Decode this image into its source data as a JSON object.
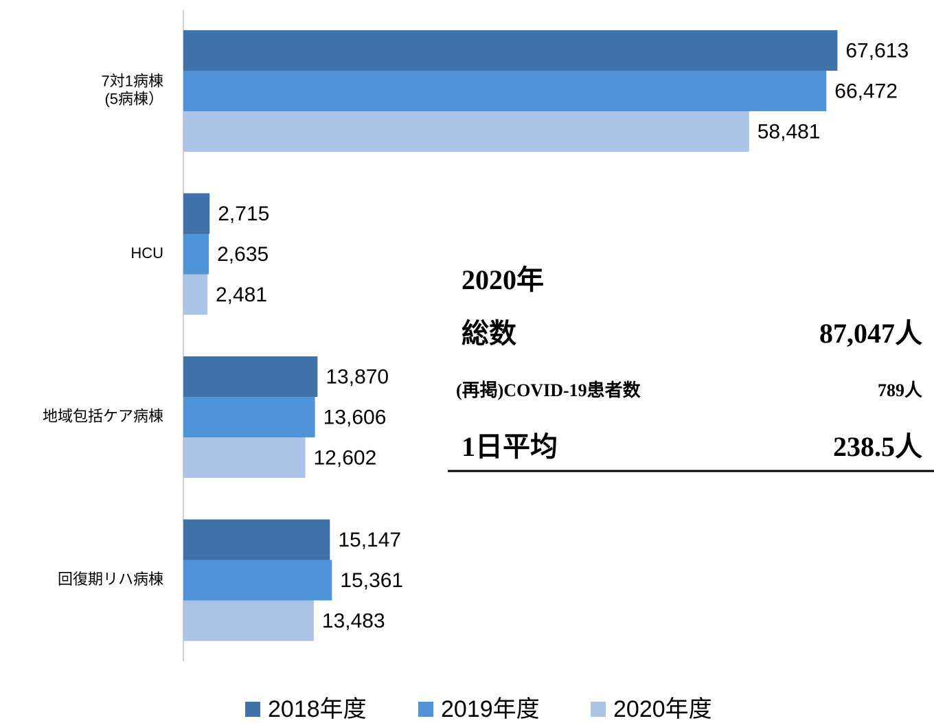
{
  "chart_data": {
    "type": "bar",
    "orientation": "horizontal",
    "categories": [
      "7対1病棟\n(5病棟）",
      "HCU",
      "地域包括ケア病棟",
      "回復期リハ病棟"
    ],
    "series": [
      {
        "name": "2018年度",
        "color": "#3f72a8",
        "values": [
          67613,
          2715,
          13870,
          15147
        ],
        "value_labels": [
          "67,613",
          "2,715",
          "13,870",
          "15,147"
        ]
      },
      {
        "name": "2019年度",
        "color": "#4f94d8",
        "values": [
          66472,
          2635,
          13606,
          15361
        ],
        "value_labels": [
          "66,472",
          "2,635",
          "13,606",
          "15,361"
        ]
      },
      {
        "name": "2020年度",
        "color": "#abc4e6",
        "values": [
          58481,
          2481,
          12602,
          13483
        ],
        "value_labels": [
          "58,481",
          "2,481",
          "12,602",
          "13,483"
        ]
      }
    ],
    "xlim": [
      0,
      70000
    ],
    "legend": "bottom",
    "annotation": {
      "heading": "2020年",
      "rows": [
        {
          "label": "総数",
          "value": "87,047人"
        },
        {
          "label": "(再掲)COVID-19患者数",
          "value": "789人"
        },
        {
          "label": "1日平均",
          "value": "238.5人"
        }
      ]
    }
  }
}
